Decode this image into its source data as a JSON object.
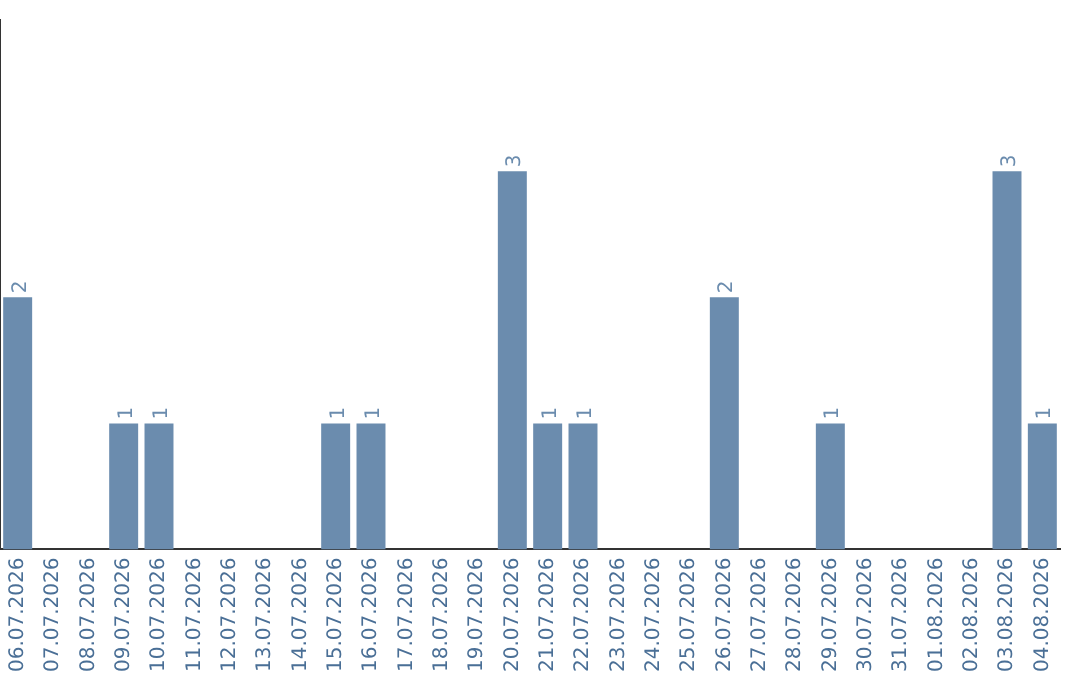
{
  "chart_data": {
    "type": "bar",
    "categories": [
      "06.07.2026",
      "07.07.2026",
      "08.07.2026",
      "09.07.2026",
      "10.07.2026",
      "11.07.2026",
      "12.07.2026",
      "13.07.2026",
      "14.07.2026",
      "15.07.2026",
      "16.07.2026",
      "17.07.2026",
      "18.07.2026",
      "19.07.2026",
      "20.07.2026",
      "21.07.2026",
      "22.07.2026",
      "23.07.2026",
      "24.07.2026",
      "25.07.2026",
      "26.07.2026",
      "27.07.2026",
      "28.07.2026",
      "29.07.2026",
      "30.07.2026",
      "31.07.2026",
      "01.08.2026",
      "02.08.2026",
      "03.08.2026",
      "04.08.2026"
    ],
    "values": [
      2,
      0,
      0,
      1,
      1,
      0,
      0,
      0,
      0,
      1,
      1,
      0,
      0,
      0,
      3,
      1,
      1,
      0,
      0,
      0,
      2,
      0,
      0,
      1,
      0,
      0,
      0,
      0,
      3,
      1
    ],
    "value_labels": [
      "2",
      null,
      null,
      "1",
      "1",
      null,
      null,
      null,
      null,
      "1",
      "1",
      null,
      null,
      null,
      "3",
      "1",
      "1",
      null,
      null,
      null,
      "2",
      null,
      null,
      "1",
      null,
      null,
      null,
      null,
      "3",
      "1"
    ],
    "color": "#6b8cae",
    "ylim": [
      0,
      4.2
    ],
    "tick_labels": "x",
    "grid": false,
    "legend": false
  }
}
